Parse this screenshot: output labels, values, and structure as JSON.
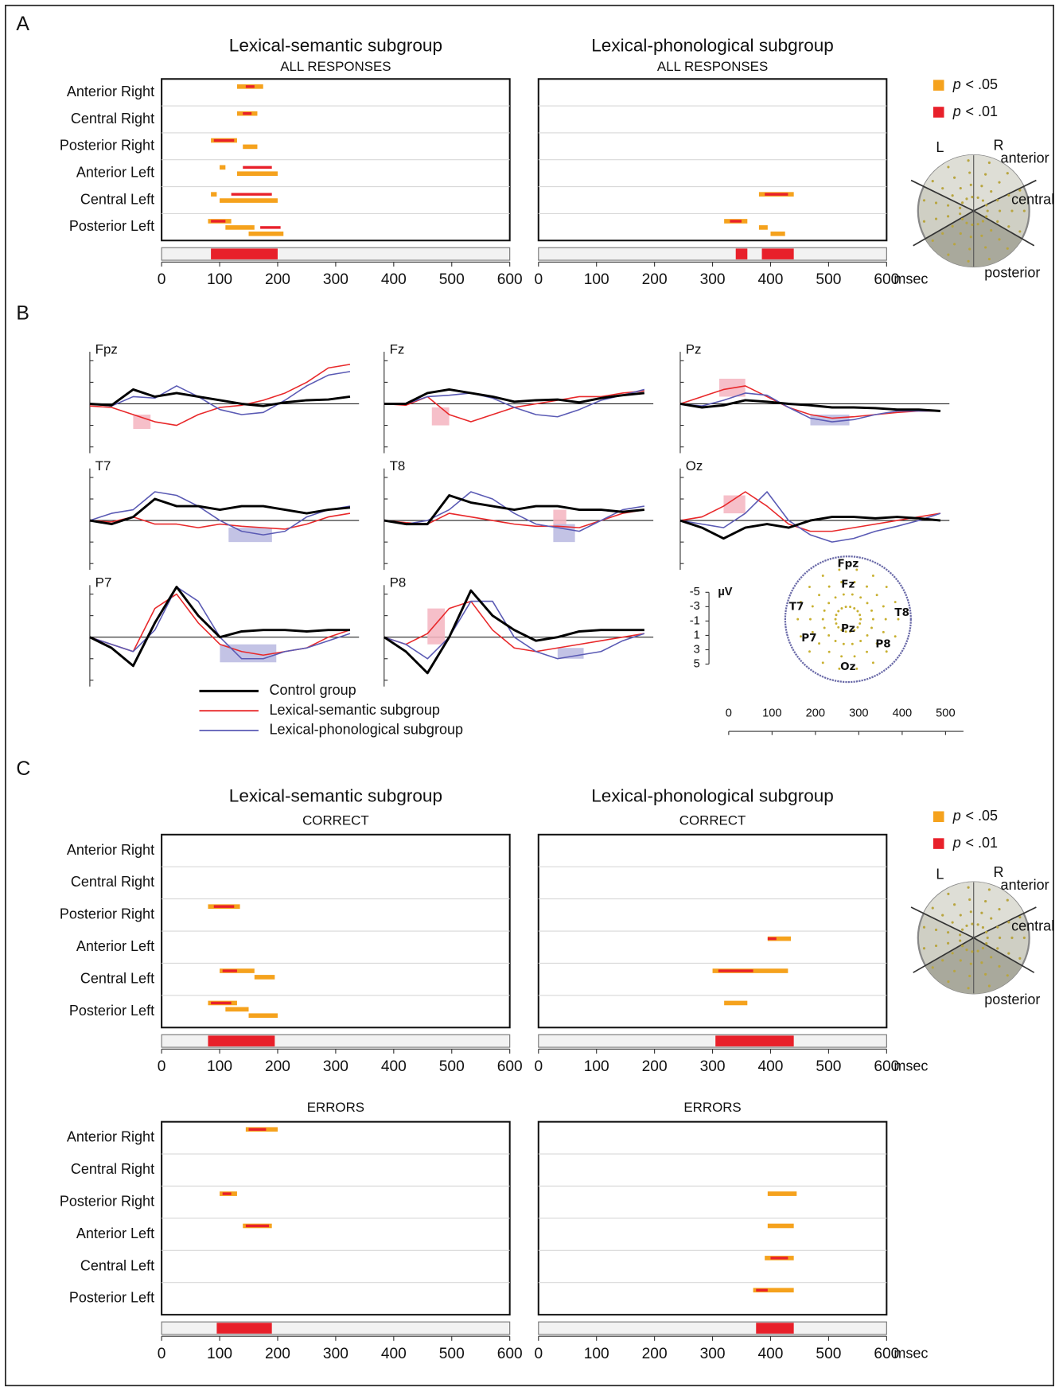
{
  "regions": [
    "Anterior Right",
    "Central Right",
    "Posterior Right",
    "Anterior Left",
    "Central Left",
    "Posterior Left"
  ],
  "significance_legend": [
    {
      "symbol": "p",
      "text": "< .05",
      "color": "#f5a21d"
    },
    {
      "symbol": "p",
      "text": "< .01",
      "color": "#e8202a"
    }
  ],
  "head_labels": {
    "left": "L",
    "right": "R",
    "anterior": "anterior",
    "central": "central",
    "posterior": "posterior"
  },
  "time_axis": {
    "xlim": [
      0,
      600
    ],
    "xticks": [
      0,
      100,
      200,
      300,
      400,
      500,
      600
    ],
    "unit": "msec"
  },
  "panel_a": {
    "label": "A",
    "titles": [
      "Lexical-semantic subgroup",
      "Lexical-phonological subgroup"
    ],
    "charts": [
      {
        "subtitle": "ALL RESPONSES",
        "significant": [
          [
            85,
            200
          ]
        ],
        "bands": [
          {
            "p05": [
              [
                130,
                175
              ]
            ],
            "p01": [
              [
                145,
                160
              ]
            ]
          },
          {
            "p05": [
              [
                130,
                165
              ]
            ],
            "p01": [
              [
                140,
                155
              ]
            ]
          },
          {
            "p05": [
              [
                85,
                130
              ],
              [
                140,
                165
              ]
            ],
            "p01": [
              [
                90,
                125
              ]
            ]
          },
          {
            "p05": [
              [
                100,
                110
              ],
              [
                130,
                200
              ]
            ],
            "p01": [
              [
                140,
                190
              ]
            ]
          },
          {
            "p05": [
              [
                85,
                95
              ],
              [
                100,
                200
              ]
            ],
            "p01": [
              [
                120,
                190
              ]
            ]
          },
          {
            "p05": [
              [
                80,
                120
              ],
              [
                110,
                160
              ],
              [
                150,
                210
              ]
            ],
            "p01": [
              [
                85,
                110
              ],
              [
                170,
                205
              ]
            ]
          }
        ]
      },
      {
        "subtitle": "ALL RESPONSES",
        "significant": [
          [
            340,
            360
          ],
          [
            385,
            440
          ]
        ],
        "bands": [
          {
            "p05": [],
            "p01": []
          },
          {
            "p05": [],
            "p01": []
          },
          {
            "p05": [],
            "p01": []
          },
          {
            "p05": [],
            "p01": []
          },
          {
            "p05": [
              [
                380,
                440
              ]
            ],
            "p01": [
              [
                390,
                430
              ]
            ]
          },
          {
            "p05": [
              [
                320,
                360
              ],
              [
                380,
                395
              ],
              [
                400,
                425
              ]
            ],
            "p01": [
              [
                330,
                350
              ]
            ]
          }
        ]
      }
    ]
  },
  "panel_b": {
    "label": "B",
    "x": [
      0,
      50,
      100,
      150,
      200,
      250,
      300,
      350,
      400,
      450,
      500,
      550,
      600
    ],
    "series": [
      {
        "name": "Control group",
        "color": "#000000"
      },
      {
        "name": "Lexical-semantic subgroup",
        "color": "#e8282a"
      },
      {
        "name": "Lexical-phonological subgroup",
        "color": "#5a5ab4"
      }
    ],
    "channels": [
      {
        "name": "Fpz",
        "series": [
          [
            0,
            0.2,
            -2,
            -1,
            -1.5,
            -1,
            -0.5,
            0,
            0.3,
            -0.2,
            -0.5,
            -0.6,
            -1
          ],
          [
            0.3,
            0.5,
            1.5,
            2.5,
            3,
            1.5,
            0.5,
            0.2,
            -0.5,
            -1.5,
            -3,
            -5,
            -5.5
          ],
          [
            0,
            0.3,
            -1,
            -0.8,
            -2.5,
            -1,
            0.8,
            1.5,
            1.2,
            -0.5,
            -2.5,
            -4,
            -4.5
          ]
        ],
        "highlights": [
          {
            "x": [
              100,
              140
            ],
            "y": [
              1.5,
              3.5
            ],
            "color": "#f4b4c0"
          }
        ]
      },
      {
        "name": "Fz",
        "series": [
          [
            0,
            0,
            -1.5,
            -2,
            -1.5,
            -1,
            -0.3,
            -0.5,
            -0.6,
            -0.2,
            -0.8,
            -1.2,
            -1.5
          ],
          [
            0,
            0.2,
            -1,
            1.5,
            2.5,
            1.5,
            0.5,
            0,
            -0.5,
            -1,
            -1,
            -1.5,
            -1.8
          ],
          [
            0,
            0,
            -1,
            -1.2,
            -1.5,
            -0.8,
            0.5,
            1.5,
            1.8,
            0.8,
            -0.5,
            -1.2,
            -2
          ]
        ],
        "highlights": [
          {
            "x": [
              110,
              150
            ],
            "y": [
              0.5,
              3
            ],
            "color": "#f4b4c0"
          }
        ]
      },
      {
        "name": "Pz",
        "series": [
          [
            0,
            0.5,
            0.2,
            -0.5,
            -0.3,
            0,
            0.2,
            0.5,
            0.5,
            0.6,
            0.8,
            0.8,
            1
          ],
          [
            0,
            -1,
            -2,
            -2.5,
            -1,
            0.5,
            1.5,
            2,
            1.8,
            1.5,
            1.2,
            1,
            1
          ],
          [
            0,
            0.3,
            -0.5,
            -1.5,
            -1.2,
            0.5,
            2,
            2.5,
            2.2,
            1.5,
            1,
            1,
            1
          ]
        ],
        "highlights": [
          {
            "x": [
              90,
              150
            ],
            "y": [
              -3.5,
              -1
            ],
            "color": "#f4b4c0"
          },
          {
            "x": [
              300,
              390
            ],
            "y": [
              1.5,
              3
            ],
            "color": "#b8b8e0"
          }
        ]
      },
      {
        "name": "T7",
        "series": [
          [
            0,
            0.5,
            -0.5,
            -3,
            -2,
            -2,
            -1.5,
            -2,
            -2,
            -1.5,
            -1,
            -1.5,
            -1.8
          ],
          [
            0,
            0.2,
            -0.5,
            0.5,
            0.5,
            1,
            0.5,
            0.8,
            1,
            1.2,
            0.5,
            -0.5,
            -1
          ],
          [
            0,
            -1,
            -1.5,
            -4,
            -3.5,
            -2,
            0,
            1.5,
            2,
            1.5,
            -0.5,
            -1.5,
            -2
          ]
        ],
        "highlights": [
          {
            "x": [
              320,
              420
            ],
            "y": [
              1,
              3
            ],
            "color": "#b8b8e0"
          }
        ]
      },
      {
        "name": "T8",
        "series": [
          [
            0,
            0.5,
            0.5,
            -3.5,
            -2.5,
            -2,
            -1.5,
            -2,
            -2,
            -1.5,
            -1.5,
            -1.2,
            -1.5
          ],
          [
            0,
            0.3,
            0.5,
            -1,
            -0.5,
            0,
            0.5,
            0.8,
            0.8,
            1,
            0,
            -1,
            -1.5
          ],
          [
            0,
            0.5,
            0,
            -1.5,
            -4,
            -3,
            -1,
            0.5,
            1,
            1.5,
            0,
            -1.5,
            -2
          ]
        ],
        "highlights": [
          {
            "x": [
              390,
              420
            ],
            "y": [
              -1.5,
              1
            ],
            "color": "#f4b4c0"
          },
          {
            "x": [
              390,
              440
            ],
            "y": [
              0.5,
              3
            ],
            "color": "#b8b8e0"
          }
        ]
      },
      {
        "name": "Oz",
        "series": [
          [
            0,
            1,
            2.5,
            1,
            0.5,
            1,
            0,
            -0.5,
            -0.5,
            -0.3,
            -0.5,
            -0.3,
            0
          ],
          [
            0,
            -0.5,
            -2,
            -4,
            -2,
            0.5,
            1.5,
            1.5,
            1,
            0.5,
            0,
            -0.5,
            -1
          ],
          [
            0,
            0.5,
            1,
            -1,
            -4,
            0,
            2,
            3,
            2.5,
            1.5,
            0.8,
            0,
            -1
          ]
        ],
        "highlights": [
          {
            "x": [
              100,
              150
            ],
            "y": [
              -3.5,
              -1
            ],
            "color": "#f4b4c0"
          }
        ]
      },
      {
        "name": "P7",
        "series": [
          [
            0,
            1.5,
            4,
            -2,
            -7,
            -3,
            0,
            -0.8,
            -1,
            -1,
            -0.8,
            -1,
            -1
          ],
          [
            0,
            1,
            2,
            -4,
            -6,
            -2,
            1,
            2,
            2.5,
            2,
            1.5,
            0,
            -1
          ],
          [
            0,
            1,
            2,
            -1,
            -7,
            -5,
            0,
            3,
            3,
            2,
            1.5,
            0.5,
            -0.5
          ]
        ],
        "highlights": [
          {
            "x": [
              300,
              430
            ],
            "y": [
              1,
              3.5
            ],
            "color": "#b8b8e0"
          }
        ]
      },
      {
        "name": "P8",
        "series": [
          [
            0,
            2,
            5,
            0,
            -6.5,
            -3,
            -1,
            0.5,
            0,
            -0.8,
            -1,
            -1,
            -1
          ],
          [
            0,
            1,
            -0.5,
            -4,
            -5,
            -1,
            1.5,
            2,
            1.5,
            1,
            0.5,
            0,
            -0.5
          ],
          [
            0,
            1,
            3,
            0,
            -5,
            -5,
            0,
            2,
            3,
            2.5,
            2,
            0.5,
            -0.5
          ]
        ],
        "highlights": [
          {
            "x": [
              100,
              140
            ],
            "y": [
              -4,
              1
            ],
            "color": "#f4b4c0"
          },
          {
            "x": [
              400,
              460
            ],
            "y": [
              1.5,
              3
            ],
            "color": "#b8b8e0"
          }
        ]
      }
    ],
    "scale": {
      "unit": "µV",
      "ylim": [
        -5,
        5
      ],
      "yticks": [
        -5,
        -3,
        -1,
        1,
        3,
        5
      ],
      "xlim": [
        0,
        500
      ],
      "xticks": [
        0,
        100,
        200,
        300,
        400,
        500
      ]
    }
  },
  "panel_c": {
    "label": "C",
    "titles": [
      "Lexical-semantic subgroup",
      "Lexical-phonological subgroup"
    ],
    "sections": [
      {
        "charts": [
          {
            "subtitle": "CORRECT",
            "significant": [
              [
                80,
                195
              ]
            ],
            "bands": [
              {
                "p05": [],
                "p01": []
              },
              {
                "p05": [],
                "p01": []
              },
              {
                "p05": [
                  [
                    80,
                    135
                  ]
                ],
                "p01": [
                  [
                    90,
                    125
                  ]
                ]
              },
              {
                "p05": [],
                "p01": []
              },
              {
                "p05": [
                  [
                    100,
                    160
                  ],
                  [
                    160,
                    195
                  ]
                ],
                "p01": [
                  [
                    105,
                    130
                  ]
                ]
              },
              {
                "p05": [
                  [
                    80,
                    130
                  ],
                  [
                    110,
                    150
                  ],
                  [
                    150,
                    200
                  ]
                ],
                "p01": [
                  [
                    85,
                    120
                  ]
                ]
              }
            ]
          },
          {
            "subtitle": "CORRECT",
            "significant": [
              [
                305,
                440
              ]
            ],
            "bands": [
              {
                "p05": [],
                "p01": []
              },
              {
                "p05": [],
                "p01": []
              },
              {
                "p05": [],
                "p01": []
              },
              {
                "p05": [
                  [
                    395,
                    435
                  ]
                ],
                "p01": [
                  [
                    395,
                    410
                  ]
                ]
              },
              {
                "p05": [
                  [
                    300,
                    430
                  ]
                ],
                "p01": [
                  [
                    310,
                    370
                  ]
                ]
              },
              {
                "p05": [
                  [
                    320,
                    360
                  ]
                ],
                "p01": []
              }
            ]
          }
        ]
      },
      {
        "charts": [
          {
            "subtitle": "ERRORS",
            "significant": [
              [
                95,
                190
              ]
            ],
            "bands": [
              {
                "p05": [
                  [
                    145,
                    200
                  ]
                ],
                "p01": [
                  [
                    150,
                    180
                  ]
                ]
              },
              {
                "p05": [],
                "p01": []
              },
              {
                "p05": [
                  [
                    100,
                    130
                  ]
                ],
                "p01": [
                  [
                    105,
                    120
                  ]
                ]
              },
              {
                "p05": [
                  [
                    140,
                    190
                  ]
                ],
                "p01": [
                  [
                    145,
                    185
                  ]
                ]
              },
              {
                "p05": [],
                "p01": []
              },
              {
                "p05": [],
                "p01": []
              }
            ]
          },
          {
            "subtitle": "ERRORS",
            "significant": [
              [
                375,
                440
              ]
            ],
            "bands": [
              {
                "p05": [],
                "p01": []
              },
              {
                "p05": [],
                "p01": []
              },
              {
                "p05": [
                  [
                    395,
                    445
                  ]
                ],
                "p01": []
              },
              {
                "p05": [
                  [
                    395,
                    440
                  ]
                ],
                "p01": []
              },
              {
                "p05": [
                  [
                    390,
                    440
                  ]
                ],
                "p01": [
                  [
                    400,
                    430
                  ]
                ]
              },
              {
                "p05": [
                  [
                    370,
                    440
                  ]
                ],
                "p01": [
                  [
                    375,
                    395
                  ]
                ]
              }
            ]
          }
        ]
      }
    ]
  }
}
